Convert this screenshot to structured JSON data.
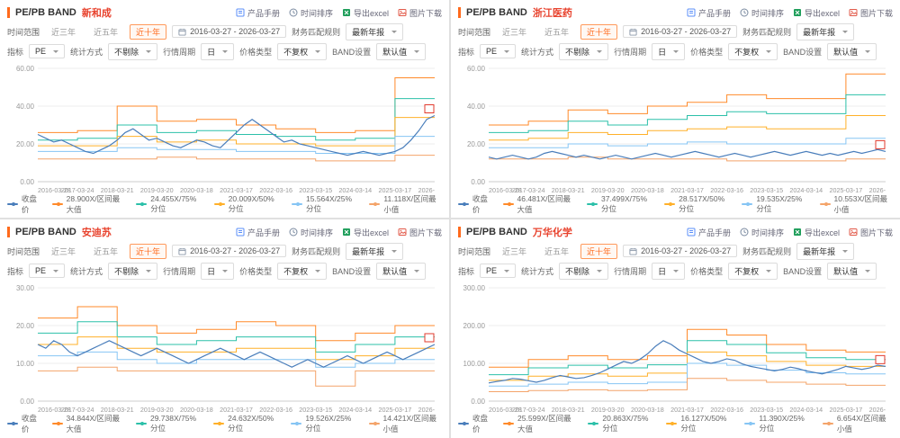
{
  "toolbar": {
    "manual": "产品手册",
    "sort": "时间排序",
    "export": "导出excel",
    "download": "图片下载"
  },
  "controls": {
    "time_range_label": "时间范围",
    "ranges": [
      "近三年",
      "近五年",
      "近十年"
    ],
    "selected_range": "近十年",
    "date_range": "2016-03-27  -  2026-03-27",
    "finance_rule_label": "财务匹配规则",
    "finance_rule_value": "最新年报",
    "indicator_label": "指标",
    "indicator_value": "PE",
    "stat_label": "统计方式",
    "stat_value": "不剔除",
    "period_label": "行情周期",
    "period_value": "日",
    "price_type_label": "价格类型",
    "price_type_value": "不复权",
    "band_label": "BAND设置",
    "band_value": "默认值"
  },
  "colors": {
    "price": "#4a7ebb",
    "max": "#ff8a2a",
    "p75": "#2cc0a9",
    "p50": "#ffb029",
    "p25": "#86c5f4",
    "min": "#f4a46a",
    "accent": "#ff6a1c",
    "stock": "#e8432e",
    "marker": "#e23b2e"
  },
  "panels": [
    {
      "title": "PE/PB BAND",
      "stock": "新和成",
      "legend": [
        "收盘价",
        "28.900X/区间最大值",
        "24.455X/75%分位",
        "20.009X/50%分位",
        "15.564X/25%分位",
        "11.118X/区间最小值"
      ]
    },
    {
      "title": "PE/PB BAND",
      "stock": "浙江医药",
      "legend": [
        "收盘价",
        "46.481X/区间最大值",
        "37.499X/75%分位",
        "28.517X/50%分位",
        "19.535X/25%分位",
        "10.553X/区间最小值"
      ]
    },
    {
      "title": "PE/PB BAND",
      "stock": "安迪苏",
      "legend": [
        "收盘价",
        "34.844X/区间最大值",
        "29.738X/75%分位",
        "24.632X/50%分位",
        "19.526X/25%分位",
        "14.421X/区间最小值"
      ]
    },
    {
      "title": "PE/PB BAND",
      "stock": "万华化学",
      "legend": [
        "收盘价",
        "25.599X/区间最大值",
        "20.863X/75%分位",
        "16.127X/50%分位",
        "11.390X/25%分位",
        "6.654X/区间最小值"
      ]
    }
  ],
  "chart_data": [
    {
      "type": "line",
      "title": "新和成 PE BAND",
      "categories": [
        "2016-03-28",
        "2017-03-24",
        "2018-03-21",
        "2019-03-20",
        "2020-03-18",
        "2021-03-17",
        "2022-03-16",
        "2023-03-15",
        "2024-03-14",
        "2025-03-17",
        "2026-"
      ],
      "ylim": [
        0,
        60
      ],
      "yticks": [
        0,
        20,
        40,
        60
      ],
      "bands": [
        {
          "name": "区间最大值",
          "key": "max",
          "steps": [
            26,
            27,
            40,
            32,
            33,
            30,
            28,
            26,
            27,
            55
          ]
        },
        {
          "name": "75%分位",
          "key": "p75",
          "steps": [
            22,
            23,
            30,
            26,
            27,
            25,
            24,
            22,
            23,
            44
          ]
        },
        {
          "name": "50%分位",
          "key": "p50",
          "steps": [
            19,
            19,
            24,
            21,
            22,
            20,
            20,
            19,
            19,
            34
          ]
        },
        {
          "name": "25%分位",
          "key": "p25",
          "steps": [
            16,
            16,
            18,
            17,
            17,
            16,
            16,
            15,
            15,
            24
          ]
        },
        {
          "name": "区间最小值",
          "key": "min",
          "steps": [
            12,
            12,
            12,
            13,
            12,
            12,
            12,
            11,
            11,
            14
          ]
        }
      ],
      "close": [
        25,
        23,
        21,
        22,
        20,
        18,
        16,
        15,
        17,
        19,
        22,
        26,
        28,
        25,
        22,
        23,
        21,
        19,
        18,
        20,
        22,
        21,
        19,
        18,
        22,
        26,
        30,
        33,
        30,
        27,
        24,
        21,
        22,
        20,
        19,
        18,
        17,
        16,
        15,
        14,
        15,
        16,
        15,
        14,
        15,
        16,
        18,
        22,
        27,
        33,
        35
      ]
    },
    {
      "type": "line",
      "title": "浙江医药 PE BAND",
      "categories": [
        "2016-03-28",
        "2017-03-24",
        "2018-03-21",
        "2019-03-20",
        "2020-03-18",
        "2021-03-17",
        "2022-03-16",
        "2023-03-15",
        "2024-03-14",
        "2025-03-17",
        "2026-"
      ],
      "ylim": [
        0,
        60
      ],
      "yticks": [
        0,
        20,
        40,
        60
      ],
      "bands": [
        {
          "name": "区间最大值",
          "key": "max",
          "steps": [
            30,
            32,
            38,
            36,
            40,
            42,
            46,
            44,
            44,
            57
          ]
        },
        {
          "name": "75%分位",
          "key": "p75",
          "steps": [
            26,
            27,
            32,
            30,
            33,
            35,
            37,
            36,
            36,
            46
          ]
        },
        {
          "name": "50%分位",
          "key": "p50",
          "steps": [
            22,
            23,
            26,
            25,
            27,
            28,
            29,
            28,
            28,
            35
          ]
        },
        {
          "name": "25%分位",
          "key": "p25",
          "steps": [
            18,
            18,
            20,
            19,
            20,
            21,
            20,
            20,
            20,
            23
          ]
        },
        {
          "name": "区间最小值",
          "key": "min",
          "steps": [
            12,
            12,
            13,
            12,
            12,
            12,
            11,
            11,
            11,
            12
          ]
        }
      ],
      "close": [
        13,
        12,
        13,
        14,
        13,
        12,
        13,
        15,
        16,
        15,
        14,
        13,
        14,
        13,
        12,
        13,
        14,
        13,
        12,
        13,
        14,
        15,
        14,
        13,
        14,
        15,
        16,
        15,
        14,
        13,
        14,
        15,
        14,
        13,
        14,
        15,
        16,
        15,
        14,
        15,
        16,
        15,
        14,
        15,
        14,
        15,
        16,
        15,
        16,
        17,
        16
      ]
    },
    {
      "type": "line",
      "title": "安迪苏 PE BAND",
      "categories": [
        "2016-03-28",
        "2017-03-24",
        "2018-03-21",
        "2019-03-20",
        "2020-03-18",
        "2021-03-17",
        "2022-03-16",
        "2023-03-15",
        "2024-03-14",
        "2025-03-17",
        "2026-"
      ],
      "ylim": [
        0,
        30
      ],
      "yticks": [
        0,
        10,
        20,
        30
      ],
      "bands": [
        {
          "name": "区间最大值",
          "key": "max",
          "steps": [
            22,
            25,
            20,
            18,
            19,
            21,
            20,
            16,
            18,
            20
          ]
        },
        {
          "name": "75%分位",
          "key": "p75",
          "steps": [
            18,
            21,
            17,
            15,
            16,
            17,
            17,
            13,
            15,
            17
          ]
        },
        {
          "name": "50%分位",
          "key": "p50",
          "steps": [
            15,
            17,
            14,
            13,
            13,
            14,
            14,
            11,
            12,
            14
          ]
        },
        {
          "name": "25%分位",
          "key": "p25",
          "steps": [
            12,
            13,
            11,
            10,
            11,
            11,
            11,
            9,
            10,
            11
          ]
        },
        {
          "name": "区间最小值",
          "key": "min",
          "steps": [
            8,
            9,
            8,
            8,
            8,
            8,
            8,
            4,
            8,
            8
          ]
        }
      ],
      "close": [
        15,
        14,
        16,
        15,
        13,
        12,
        13,
        14,
        15,
        16,
        15,
        14,
        13,
        12,
        13,
        14,
        13,
        12,
        11,
        10,
        11,
        12,
        13,
        14,
        13,
        12,
        11,
        12,
        13,
        12,
        11,
        10,
        9,
        10,
        11,
        10,
        9,
        10,
        11,
        12,
        11,
        10,
        11,
        12,
        13,
        12,
        11,
        12,
        13,
        14,
        15
      ]
    },
    {
      "type": "line",
      "title": "万华化学 PE BAND",
      "categories": [
        "2016-03-28",
        "2017-03-24",
        "2018-03-21",
        "2019-03-20",
        "2020-03-18",
        "2021-03-17",
        "2022-03-16",
        "2023-03-15",
        "2024-03-14",
        "2025-03-17",
        "2026-"
      ],
      "ylim": [
        0,
        300
      ],
      "yticks": [
        0,
        100,
        200,
        300
      ],
      "bands": [
        {
          "name": "区间最大值",
          "key": "max",
          "steps": [
            90,
            110,
            120,
            110,
            120,
            190,
            175,
            150,
            135,
            130
          ]
        },
        {
          "name": "75%分位",
          "key": "p75",
          "steps": [
            70,
            88,
            95,
            88,
            96,
            160,
            150,
            128,
            115,
            110
          ]
        },
        {
          "name": "50%分位",
          "key": "p50",
          "steps": [
            55,
            66,
            72,
            66,
            74,
            130,
            120,
            105,
            95,
            92
          ]
        },
        {
          "name": "25%分位",
          "key": "p25",
          "steps": [
            40,
            45,
            50,
            46,
            50,
            100,
            95,
            82,
            75,
            72
          ]
        },
        {
          "name": "区间最小值",
          "key": "min",
          "steps": [
            25,
            28,
            30,
            28,
            30,
            60,
            55,
            50,
            45,
            42
          ]
        }
      ],
      "close": [
        48,
        52,
        55,
        60,
        58,
        54,
        50,
        55,
        62,
        68,
        64,
        60,
        62,
        68,
        75,
        85,
        95,
        105,
        100,
        110,
        125,
        145,
        160,
        150,
        135,
        125,
        115,
        105,
        100,
        105,
        112,
        108,
        98,
        92,
        88,
        84,
        80,
        84,
        90,
        86,
        80,
        76,
        72,
        78,
        84,
        92,
        88,
        84,
        88,
        95,
        92
      ]
    }
  ]
}
